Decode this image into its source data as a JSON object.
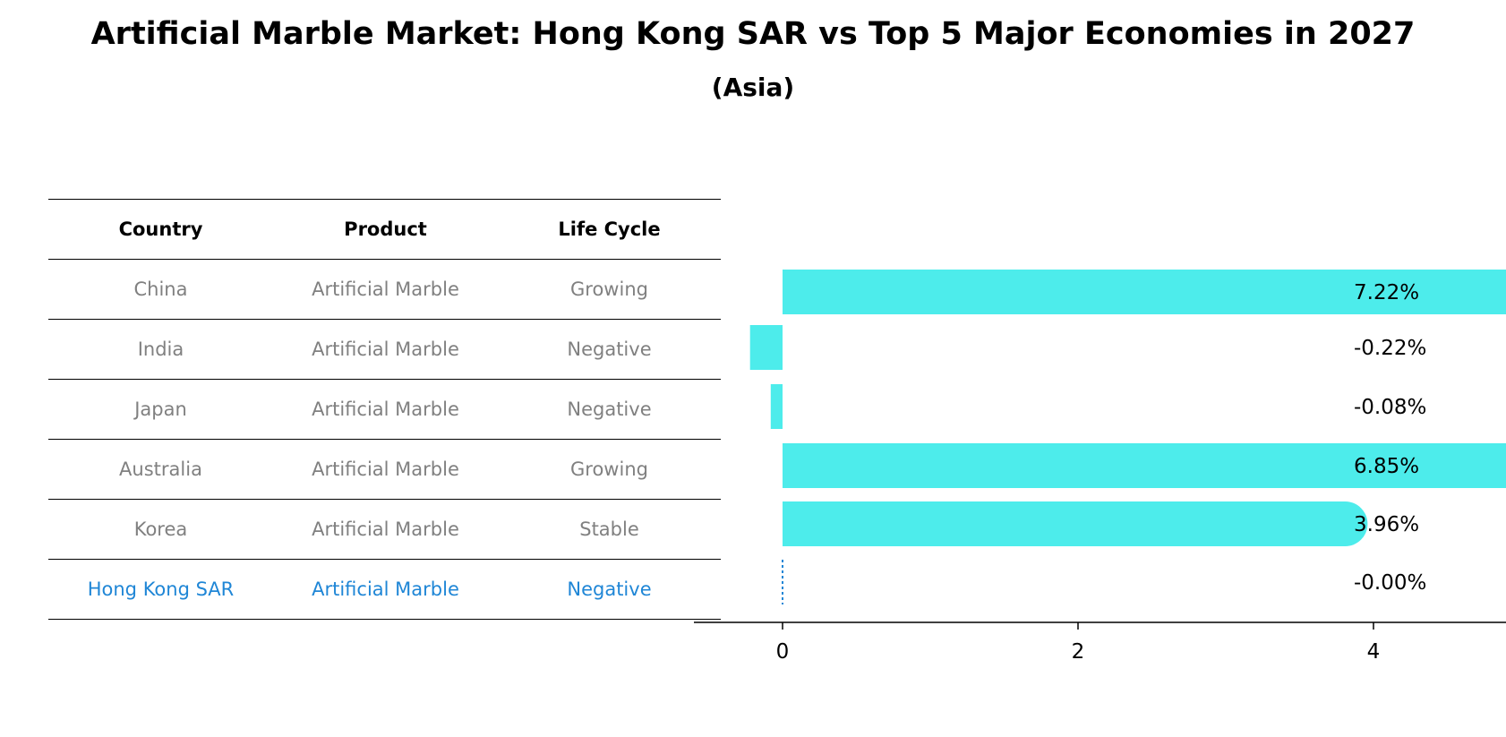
{
  "title": "Artificial Marble Market: Hong Kong SAR vs Top 5 Major Economies in 2027",
  "subtitle": "(Asia)",
  "table": {
    "headers": [
      "Country",
      "Product",
      "Life Cycle"
    ],
    "rows": [
      [
        "China",
        "Artificial Marble",
        "Growing"
      ],
      [
        "India",
        "Artificial Marble",
        "Negative"
      ],
      [
        "Japan",
        "Artificial Marble",
        "Negative"
      ],
      [
        "Australia",
        "Artificial Marble",
        "Growing"
      ],
      [
        "Korea",
        "Artificial Marble",
        "Stable"
      ],
      [
        "Hong Kong SAR",
        "Artificial Marble",
        "Negative"
      ]
    ],
    "highlight_row": 5,
    "highlight_color": "#1f86d6",
    "text_color": "#808080"
  },
  "chart_data": {
    "type": "bar",
    "orientation": "horizontal",
    "categories": [
      "China",
      "India",
      "Japan",
      "Australia",
      "Korea",
      "Hong Kong SAR"
    ],
    "values": [
      7.22,
      -0.22,
      -0.08,
      6.85,
      3.96,
      -0.0
    ],
    "value_labels": [
      "7.22%",
      "-0.22%",
      "-0.08%",
      "6.85%",
      "3.96%",
      "-0.00%"
    ],
    "xticks": [
      0,
      2,
      4,
      6
    ],
    "xlim": [
      -0.6,
      7.6
    ],
    "bar_color": "#4deceb",
    "highlight_color": "#1f86d6",
    "rounded_ends": true
  }
}
